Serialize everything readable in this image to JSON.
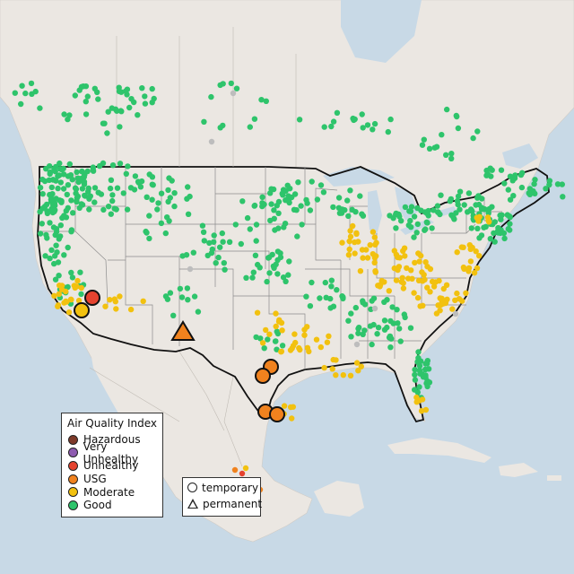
{
  "legend": {
    "title": "Air Quality Index",
    "categories": [
      {
        "label": "Hazardous",
        "color": "#7e3a2a"
      },
      {
        "label": "Very Unhealthy",
        "color": "#8e5bb0"
      },
      {
        "label": "Unhealthy",
        "color": "#e5432f"
      },
      {
        "label": "USG",
        "color": "#f0821e"
      },
      {
        "label": "Moderate",
        "color": "#f2c10f"
      },
      {
        "label": "Good",
        "color": "#2ec46b"
      }
    ],
    "shapes": [
      {
        "label": "temporary",
        "icon": "circle-icon"
      },
      {
        "label": "permanent",
        "icon": "triangle-icon"
      }
    ]
  },
  "colors": {
    "water": "#c8d9e6",
    "land": "#ebe7e2",
    "border": "#111111",
    "state_lines": "#8c8c8c",
    "no_data": "#bdbdbd"
  }
}
